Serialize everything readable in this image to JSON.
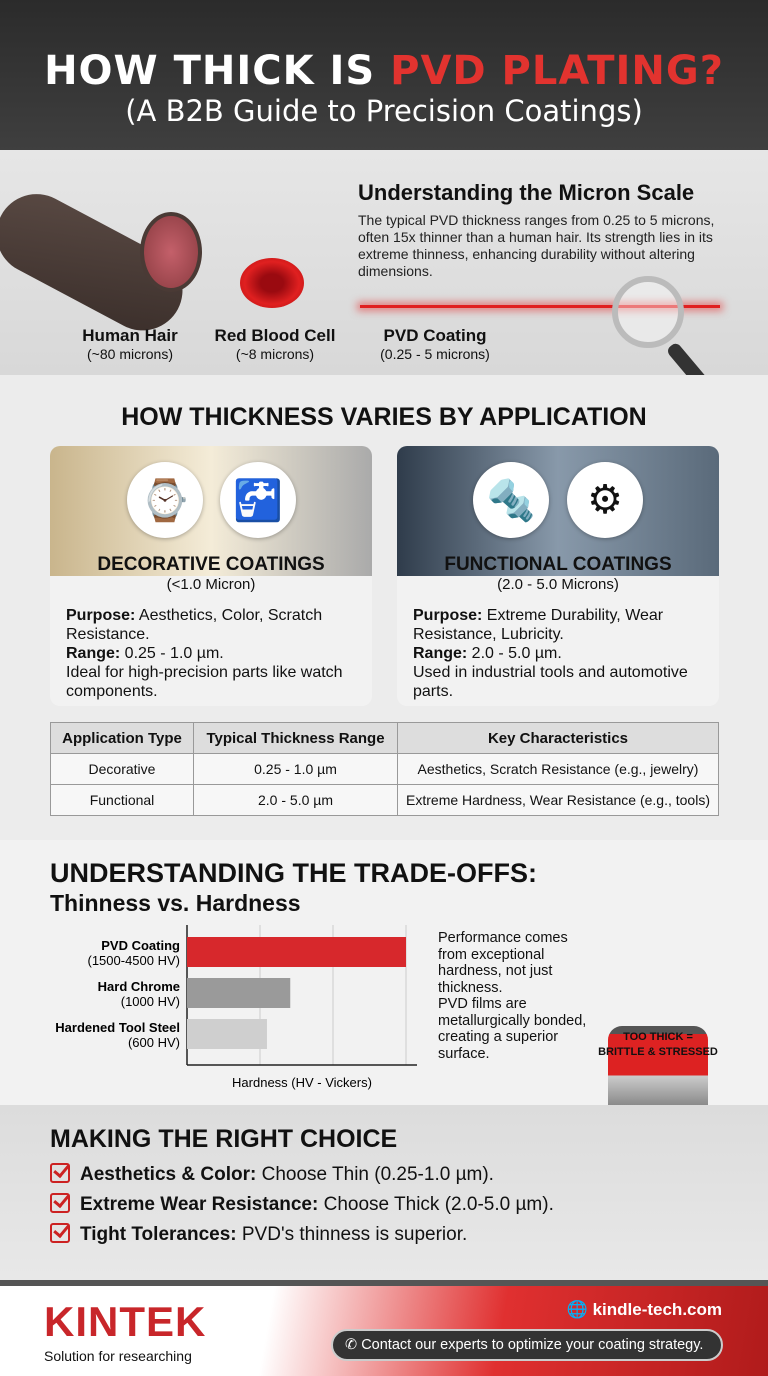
{
  "header": {
    "title_part1": "HOW THICK IS ",
    "title_part2": "PVD PLATING?",
    "subtitle": "(A B2B Guide to Precision Coatings)"
  },
  "micron": {
    "heading": "Understanding the Micron Scale",
    "text": "The typical PVD thickness ranges from 0.25 to 5 microns, often 15x thinner than a human hair. Its strength lies in its extreme thinness, enhancing durability without altering dimensions.",
    "items": [
      {
        "label": "Human Hair",
        "sub": "(~80 microns)"
      },
      {
        "label": "Red Blood Cell",
        "sub": "(~8 microns)"
      },
      {
        "label": "PVD Coating",
        "sub": "(0.25 - 5 microns)"
      }
    ]
  },
  "application": {
    "heading": "HOW THICKNESS VARIES BY APPLICATION",
    "cards": [
      {
        "title": "DECORATIVE COATINGS",
        "sub": "(<1.0 Micron)",
        "purpose_label": "Purpose:",
        "purpose": " Aesthetics, Color, Scratch Resistance.",
        "range_label": "Range:",
        "range": " 0.25 - 1.0 µm.",
        "note": "Ideal for high-precision parts like watch components.",
        "icons": [
          "watch-icon",
          "faucet-icon"
        ]
      },
      {
        "title": "FUNCTIONAL COATINGS",
        "sub": "(2.0 - 5.0 Microns)",
        "purpose_label": "Purpose:",
        "purpose": " Extreme Durability, Wear Resistance, Lubricity.",
        "range_label": "Range:",
        "range": " 2.0 - 5.0 µm.",
        "note": "Used in industrial tools and automotive parts.",
        "icons": [
          "drill-bit-icon",
          "gear-icon"
        ]
      }
    ],
    "table": {
      "headers": [
        "Application Type",
        "Typical Thickness Range",
        "Key Characteristics"
      ],
      "rows": [
        [
          "Decorative",
          "0.25 - 1.0 µm",
          "Aesthetics, Scratch Resistance (e.g., jewelry)"
        ],
        [
          "Functional",
          "2.0 - 5.0 µm",
          "Extreme Hardness, Wear Resistance (e.g., tools)"
        ]
      ]
    }
  },
  "tradeoffs": {
    "heading": "UNDERSTANDING THE TRADE-OFFS:",
    "subheading": "Thinness vs. Hardness",
    "text1": "Performance comes from exceptional hardness, not just thickness.",
    "text2": "PVD films are metallurgically bonded, creating a superior surface.",
    "warning_line1": "TOO THICK =",
    "warning_line2": "BRITTLE & STRESSED"
  },
  "chart_data": {
    "type": "bar",
    "orientation": "horizontal",
    "xlabel": "Hardness (HV - Vickers)",
    "grid": true,
    "categories": [
      "PVD Coating",
      "Hard Chrome",
      "Hardened Tool Steel"
    ],
    "category_sublabels": [
      "(1500-4500 HV)",
      "(1000 HV)",
      "(600 HV)"
    ],
    "values": [
      4500,
      1000,
      600
    ],
    "colors": [
      "#d7282c",
      "#9a9a9a",
      "#cfcfcf"
    ]
  },
  "choice": {
    "heading": "MAKING THE RIGHT CHOICE",
    "items": [
      {
        "bold": "Aesthetics & Color:",
        "text": " Choose Thin (0.25-1.0 µm)."
      },
      {
        "bold": "Extreme Wear Resistance:",
        "text": " Choose Thick (2.0-5.0 µm)."
      },
      {
        "bold": "Tight Tolerances:",
        "text": " PVD's thinness is superior."
      }
    ]
  },
  "footer": {
    "brand": "KINTEK",
    "tagline": "Solution for researching",
    "website": "kindle-tech.com",
    "contact": "Contact our experts to optimize your coating strategy."
  },
  "colors": {
    "accent": "#d7282c",
    "dark": "#2f2f2f"
  }
}
